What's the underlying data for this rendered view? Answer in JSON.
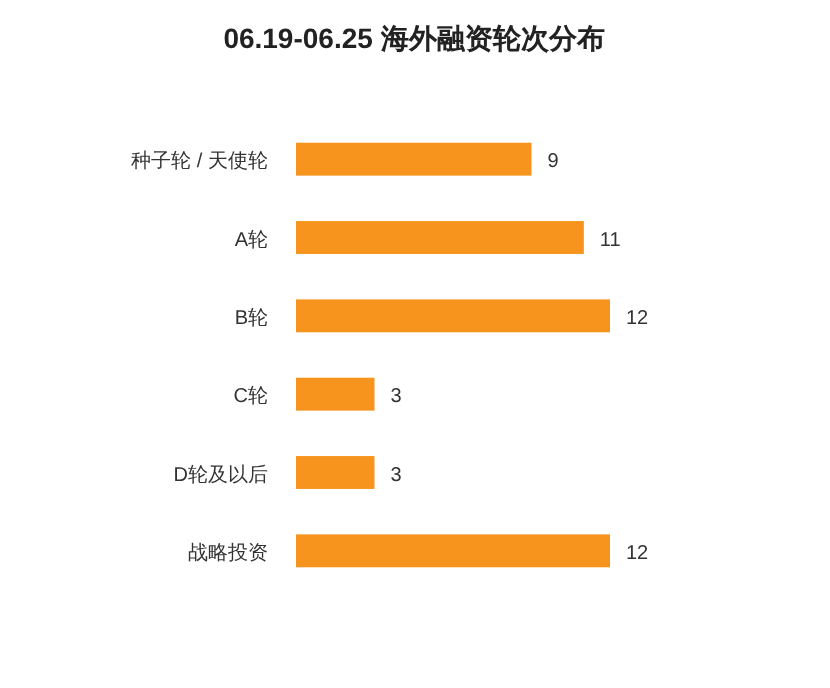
{
  "chart_data": {
    "type": "bar",
    "orientation": "horizontal",
    "title": "06.19-06.25 海外融资轮次分布",
    "categories": [
      "种子轮 / 天使轮",
      "A轮",
      "B轮",
      "C轮",
      "D轮及以后",
      "战略投资"
    ],
    "values": [
      9,
      11,
      12,
      3,
      3,
      12
    ],
    "color": "#f7941d",
    "data_labels": true
  }
}
